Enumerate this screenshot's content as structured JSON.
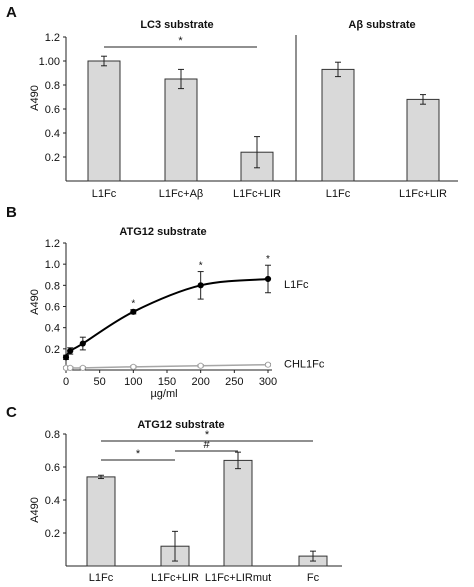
{
  "panels": {
    "a": {
      "letter": "A",
      "ylabel": "A490"
    },
    "b": {
      "letter": "B",
      "ylabel": "A490"
    },
    "c": {
      "letter": "C",
      "ylabel": "A490"
    }
  },
  "colors": {
    "bar_fill": "#d9d9d9",
    "bar_stroke": "#333333",
    "line_l1fc": "#000000",
    "line_chl1fc": "#a6a6a6"
  },
  "chart_data": [
    {
      "type": "bar",
      "title": "LC3 substrate",
      "xlabel": "",
      "ylabel": "A490",
      "categories": [
        "L1Fc",
        "L1Fc+Aβ",
        "L1Fc+LIR"
      ],
      "values": [
        1.0,
        0.85,
        0.24
      ],
      "error": [
        0.04,
        0.08,
        0.13
      ],
      "ylim": [
        0,
        1.2
      ],
      "yticks": [
        "0.2",
        "0.4",
        "0.6",
        "0.8",
        "1.00",
        "1.2"
      ],
      "significance": [
        {
          "from": "L1Fc",
          "to": "L1Fc+LIR",
          "label": "*"
        }
      ]
    },
    {
      "type": "bar",
      "title": "Aβ substrate",
      "categories": [
        "L1Fc",
        "L1Fc+LIR"
      ],
      "values": [
        0.93,
        0.68
      ],
      "error": [
        0.06,
        0.04
      ],
      "ylim": [
        0,
        1.2
      ]
    },
    {
      "type": "line",
      "title": "ATG12 substrate",
      "xlabel": "µg/ml",
      "ylabel": "A490",
      "xlim": [
        0,
        300
      ],
      "ylim": [
        0,
        1.2
      ],
      "xticks": [
        "0",
        "50",
        "100",
        "150",
        "200",
        "250",
        "300"
      ],
      "yticks": [
        "0.2",
        "0.4",
        "0.6",
        "0.8",
        "1.0",
        "1.2"
      ],
      "series": [
        {
          "name": "L1Fc",
          "x": [
            0,
            6.25,
            25,
            100,
            200,
            300
          ],
          "y": [
            0.12,
            0.18,
            0.25,
            0.55,
            0.8,
            0.86
          ],
          "error": [
            0.02,
            0.03,
            0.06,
            0.02,
            0.13,
            0.13
          ],
          "marks": [
            "",
            "",
            "",
            "*",
            "*",
            "*"
          ]
        },
        {
          "name": "CHL1Fc",
          "x": [
            0,
            6.25,
            25,
            100,
            200,
            300
          ],
          "y": [
            0.02,
            0.02,
            0.02,
            0.03,
            0.04,
            0.05
          ],
          "error": [
            0.01,
            0.01,
            0.01,
            0.01,
            0.01,
            0.01
          ],
          "marks": [
            "",
            "",
            "",
            "",
            "",
            ""
          ]
        }
      ]
    },
    {
      "type": "bar",
      "title": "ATG12 substrate",
      "xlabel": "",
      "ylabel": "A490",
      "categories": [
        "L1Fc",
        "L1Fc+LIR",
        "L1Fc+LIRmut",
        "Fc"
      ],
      "values": [
        0.54,
        0.12,
        0.64,
        0.06
      ],
      "error": [
        0.01,
        0.09,
        0.05,
        0.03
      ],
      "ylim": [
        0,
        0.8
      ],
      "yticks": [
        "0.2",
        "0.4",
        "0.6",
        "0.8"
      ],
      "significance": [
        {
          "from": "L1Fc",
          "to": "L1Fc+LIR",
          "label": "*"
        },
        {
          "from": "L1Fc+LIR",
          "to": "L1Fc+LIRmut",
          "label": "#"
        },
        {
          "from": "L1Fc",
          "to": "Fc",
          "label": "*"
        }
      ]
    }
  ]
}
